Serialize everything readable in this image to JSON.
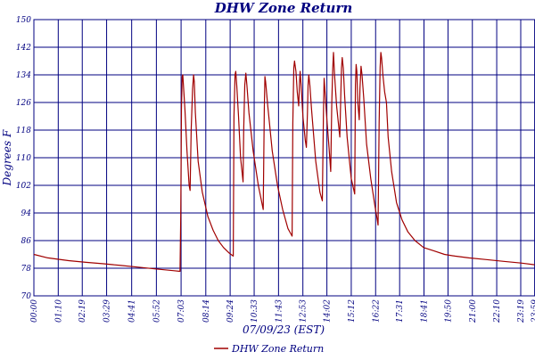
{
  "chart_data": {
    "type": "line",
    "title": "DHW Zone Return",
    "xlabel": "07/09/23 (EST)",
    "ylabel": "Degrees F",
    "ylim": [
      70,
      150
    ],
    "yticks": [
      70,
      78,
      86,
      94,
      102,
      110,
      118,
      126,
      134,
      142,
      150
    ],
    "xlim_minutes": [
      0,
      1440
    ],
    "xticks": [
      {
        "label": "00:00",
        "minute": 0
      },
      {
        "label": "01:10",
        "minute": 70
      },
      {
        "label": "02:19",
        "minute": 139
      },
      {
        "label": "03:29",
        "minute": 209
      },
      {
        "label": "04:41",
        "minute": 281
      },
      {
        "label": "05:52",
        "minute": 352
      },
      {
        "label": "07:03",
        "minute": 423
      },
      {
        "label": "08:14",
        "minute": 494
      },
      {
        "label": "09:24",
        "minute": 564
      },
      {
        "label": "10:33",
        "minute": 633
      },
      {
        "label": "11:43",
        "minute": 703
      },
      {
        "label": "12:53",
        "minute": 773
      },
      {
        "label": "14:02",
        "minute": 842
      },
      {
        "label": "15:12",
        "minute": 912
      },
      {
        "label": "16:22",
        "minute": 982
      },
      {
        "label": "17:31",
        "minute": 1051
      },
      {
        "label": "18:41",
        "minute": 1121
      },
      {
        "label": "19:50",
        "minute": 1190
      },
      {
        "label": "21:00",
        "minute": 1260
      },
      {
        "label": "22:10",
        "minute": 1330
      },
      {
        "label": "23:19",
        "minute": 1399
      },
      {
        "label": "23:59",
        "minute": 1439
      }
    ],
    "grid": true,
    "legend_position": "bottom",
    "series": [
      {
        "name": "DHW Zone Return",
        "color": "#a00000",
        "points": [
          [
            0,
            82
          ],
          [
            40,
            81
          ],
          [
            100,
            80.2
          ],
          [
            150,
            79.7
          ],
          [
            200,
            79.3
          ],
          [
            250,
            78.8
          ],
          [
            300,
            78.3
          ],
          [
            350,
            77.8
          ],
          [
            400,
            77.3
          ],
          [
            420,
            77.1
          ],
          [
            422,
            93
          ],
          [
            424,
            124
          ],
          [
            426,
            133.5
          ],
          [
            428,
            134
          ],
          [
            431,
            129
          ],
          [
            434,
            124
          ],
          [
            440,
            112
          ],
          [
            446,
            102
          ],
          [
            449,
            100.5
          ],
          [
            452,
            118
          ],
          [
            456,
            130
          ],
          [
            459,
            134
          ],
          [
            461,
            132
          ],
          [
            464,
            123
          ],
          [
            472,
            109
          ],
          [
            484,
            100
          ],
          [
            500,
            93
          ],
          [
            515,
            89
          ],
          [
            530,
            86
          ],
          [
            545,
            84
          ],
          [
            560,
            82.5
          ],
          [
            573,
            81.5
          ],
          [
            575,
            122
          ],
          [
            578,
            134
          ],
          [
            580,
            135
          ],
          [
            583,
            131
          ],
          [
            588,
            122
          ],
          [
            594,
            110
          ],
          [
            601,
            103
          ],
          [
            603,
            118
          ],
          [
            606,
            131
          ],
          [
            609,
            134.5
          ],
          [
            612,
            131
          ],
          [
            618,
            123
          ],
          [
            630,
            112
          ],
          [
            645,
            102
          ],
          [
            659,
            95
          ],
          [
            662,
            124
          ],
          [
            664,
            133.5
          ],
          [
            666,
            132
          ],
          [
            672,
            125
          ],
          [
            685,
            112
          ],
          [
            700,
            102
          ],
          [
            715,
            95
          ],
          [
            730,
            89.5
          ],
          [
            742,
            87.3
          ],
          [
            744,
            120
          ],
          [
            747,
            136
          ],
          [
            749,
            138
          ],
          [
            753,
            135
          ],
          [
            757,
            129
          ],
          [
            761,
            125
          ],
          [
            763,
            131
          ],
          [
            765,
            135
          ],
          [
            768,
            131
          ],
          [
            773,
            122
          ],
          [
            780,
            115
          ],
          [
            783,
            113
          ],
          [
            786,
            123
          ],
          [
            788,
            131
          ],
          [
            790,
            134
          ],
          [
            793,
            131
          ],
          [
            798,
            124
          ],
          [
            810,
            109
          ],
          [
            822,
            100
          ],
          [
            829,
            97.5
          ],
          [
            832,
            122
          ],
          [
            834,
            133
          ],
          [
            836,
            130
          ],
          [
            842,
            121
          ],
          [
            848,
            113
          ],
          [
            853,
            106
          ],
          [
            856,
            126
          ],
          [
            859,
            136
          ],
          [
            861,
            140.5
          ],
          [
            864,
            134
          ],
          [
            870,
            125
          ],
          [
            879,
            116
          ],
          [
            882,
            128
          ],
          [
            884,
            136
          ],
          [
            886,
            139
          ],
          [
            889,
            136
          ],
          [
            893,
            128
          ],
          [
            900,
            116
          ],
          [
            912,
            104
          ],
          [
            922,
            99.5
          ],
          [
            924,
            131
          ],
          [
            926,
            137
          ],
          [
            928,
            135
          ],
          [
            931,
            126
          ],
          [
            935,
            121
          ],
          [
            937,
            130
          ],
          [
            940,
            136.5
          ],
          [
            943,
            134
          ],
          [
            948,
            127
          ],
          [
            956,
            114
          ],
          [
            968,
            104
          ],
          [
            980,
            96
          ],
          [
            986,
            92.5
          ],
          [
            989,
            90.5
          ],
          [
            992,
            120
          ],
          [
            995,
            136
          ],
          [
            997,
            140.5
          ],
          [
            999,
            139
          ],
          [
            1003,
            134
          ],
          [
            1008,
            129
          ],
          [
            1013,
            126
          ],
          [
            1018,
            116
          ],
          [
            1028,
            106
          ],
          [
            1042,
            97
          ],
          [
            1058,
            92
          ],
          [
            1075,
            88.5
          ],
          [
            1095,
            86
          ],
          [
            1120,
            84
          ],
          [
            1150,
            83
          ],
          [
            1180,
            82
          ],
          [
            1210,
            81.5
          ],
          [
            1250,
            81
          ],
          [
            1300,
            80.5
          ],
          [
            1350,
            80
          ],
          [
            1400,
            79.5
          ],
          [
            1439,
            79
          ]
        ]
      }
    ]
  },
  "legend": {
    "label": "DHW Zone Return"
  }
}
